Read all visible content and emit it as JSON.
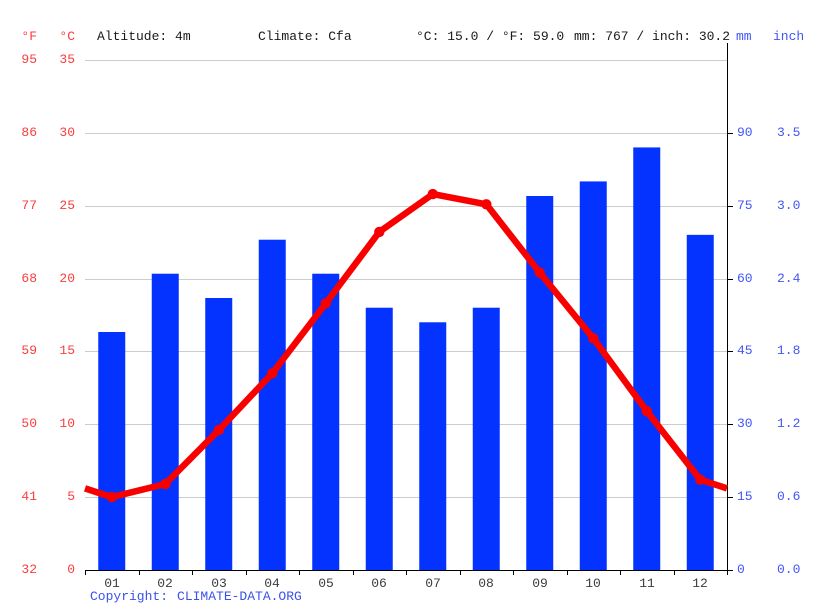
{
  "header": {
    "f_label": "°F",
    "c_label": "°C",
    "altitude": "Altitude: 4m",
    "climate": "Climate: Cfa",
    "temp_summary": "°C: 15.0 / °F: 59.0",
    "precip_summary": "mm: 767 / inch: 30.2",
    "mm_label": "mm",
    "inch_label": "inch"
  },
  "footer": {
    "copyright_prefix": "Copyright:",
    "copyright_link": "CLIMATE-DATA.ORG"
  },
  "colors": {
    "bar_blue": "#0433ff",
    "line_red": "#f90000",
    "axis_red_text": "#fb3d3d",
    "axis_blue_text": "#4156f5",
    "gridline": "#cccccc",
    "axis_black": "#000000"
  },
  "chart_data": {
    "type": "bar+line combo climate graph",
    "categories": [
      "01",
      "02",
      "03",
      "04",
      "05",
      "06",
      "07",
      "08",
      "09",
      "10",
      "11",
      "12"
    ],
    "series": [
      {
        "name": "precipitation_mm",
        "type": "bar",
        "values": [
          49,
          61,
          56,
          68,
          61,
          54,
          51,
          54,
          77,
          80,
          87,
          69
        ]
      },
      {
        "name": "temperature_c",
        "type": "line",
        "values": [
          5.0,
          5.9,
          9.6,
          13.5,
          18.3,
          23.2,
          25.8,
          25.1,
          20.4,
          15.9,
          10.9,
          6.2
        ]
      }
    ],
    "axes": {
      "temp_f_ticks": [
        "95",
        "86",
        "77",
        "68",
        "59",
        "50",
        "41",
        "32"
      ],
      "temp_c_ticks": [
        "35",
        "30",
        "25",
        "20",
        "15",
        "10",
        "5",
        "0"
      ],
      "precip_mm_ticks": [
        "90",
        "75",
        "60",
        "45",
        "30",
        "15",
        "0"
      ],
      "precip_inch_ticks": [
        "3.5",
        "3.0",
        "2.4",
        "1.8",
        "1.2",
        "0.6",
        "0.0"
      ],
      "temp_c_range": [
        0,
        35
      ],
      "precip_mm_range": [
        0,
        105
      ],
      "grid": "horizontal"
    },
    "legend": "none",
    "annotations": {
      "mean_temperature": "15.0 °C / 59.0 °F",
      "annual_precipitation": "767 mm / 30.2 inch"
    }
  }
}
